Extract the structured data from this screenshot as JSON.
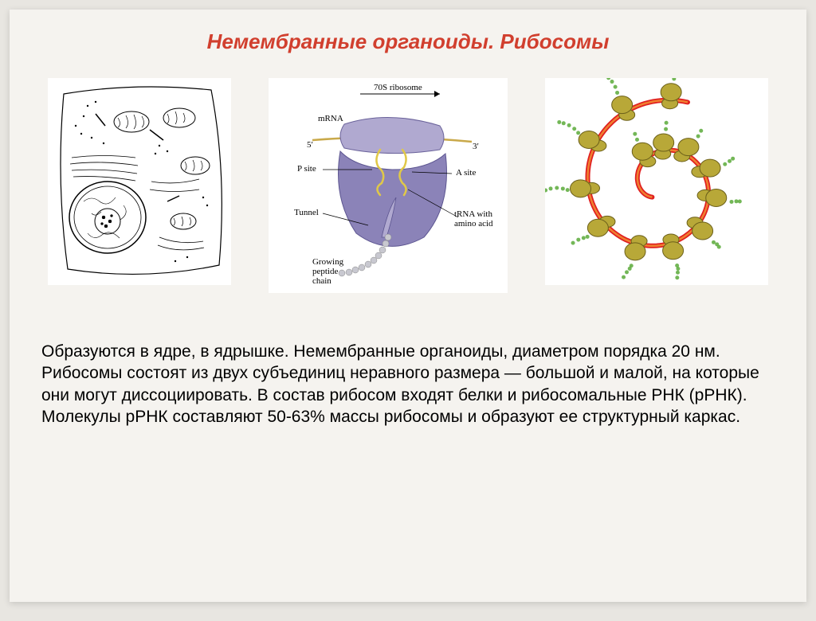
{
  "title": "Немембранные органоиды. Рибосомы",
  "title_color": "#d13f2e",
  "background": "#e8e6e1",
  "slide_bg": "#f5f3ef",
  "body_text": "Образуются в ядре, в ядрышке. Немембранные органоиды, диаметром порядка 20 нм. Рибосомы состоят из двух субъединиц неравного размера — большой и малой, на которые они могут диссоциировать. В состав рибосом входят белки и рибосомальные РНК (рРНК). Молекулы рРНК составляют 50-63% массы рибосомы и образуют ее структурный каркас.",
  "fig2": {
    "top_label": "70S ribosome",
    "mrna": "mRNA",
    "five_prime": "5′",
    "three_prime": "3′",
    "p_site": "P site",
    "a_site": "A site",
    "tunnel": "Tunnel",
    "trna": "tRNA with amino acid",
    "peptide": "Growing peptide chain",
    "large_color": "#8b83b8",
    "small_color": "#b0a9d0",
    "mrna_color": "#c9a94a",
    "trna_color": "#e0c848",
    "peptide_color": "#c8c8d0"
  },
  "fig3": {
    "strand_color": "#e02020",
    "ribosome_color": "#b8a838",
    "ribosome_edge": "#6b5f1a",
    "aa_color": "#5aaa3a",
    "ribosome_count": 13
  }
}
